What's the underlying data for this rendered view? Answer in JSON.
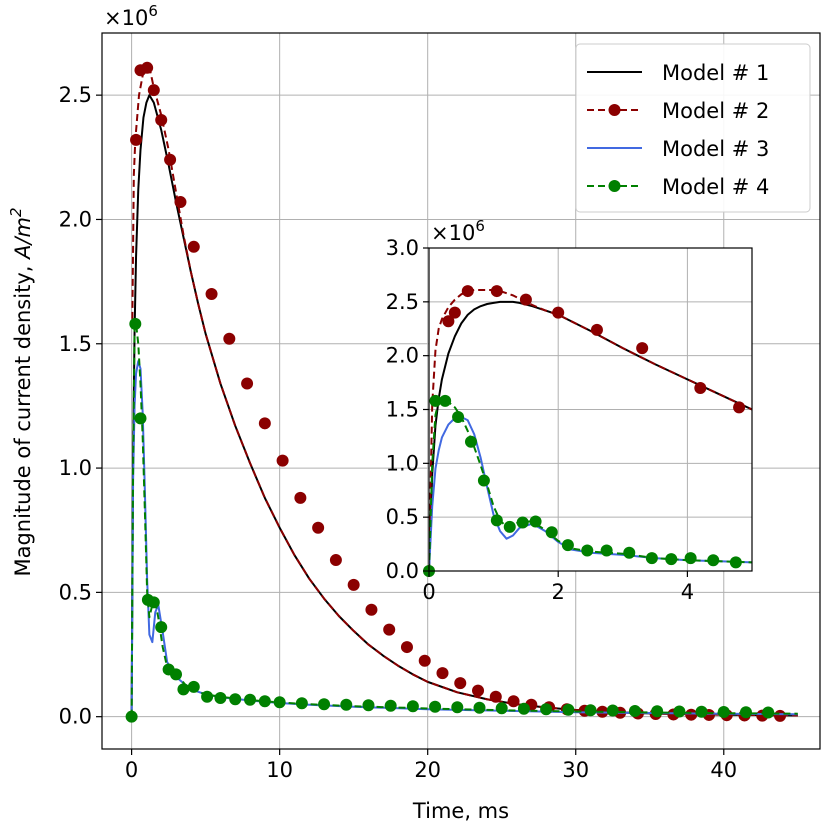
{
  "chart_data": [
    {
      "id": "main",
      "type": "line",
      "title": "",
      "xlabel": "Time, ms",
      "ylabel": "Magnitude of current density, ",
      "ylabel_math": "A/m",
      "ylabel_sup": "2",
      "y_multiplier": "×10",
      "y_multiplier_exp": "6",
      "xlim": [
        -2,
        46.5
      ],
      "ylim": [
        -0.13,
        2.75
      ],
      "xticks": [
        0,
        10,
        20,
        30,
        40
      ],
      "xtick_labels": [
        "0",
        "10",
        "20",
        "30",
        "40"
      ],
      "yticks": [
        0.0,
        0.5,
        1.0,
        1.5,
        2.0,
        2.5
      ],
      "ytick_labels": [
        "0.0",
        "0.5",
        "1.0",
        "1.5",
        "2.0",
        "2.5"
      ],
      "grid": true,
      "legend_position": "top-right",
      "series": [
        {
          "name": "Model # 1",
          "color": "#000000",
          "style": "solid",
          "marker": "none",
          "x": [
            0,
            0.1,
            0.2,
            0.3,
            0.45,
            0.6,
            0.8,
            1.0,
            1.2,
            1.5,
            2.0,
            2.5,
            3.0,
            3.5,
            4.0,
            4.5,
            5.0,
            6.0,
            7.0,
            8.0,
            9.0,
            10.0,
            11.0,
            12.0,
            13.0,
            14.0,
            15.0,
            16.0,
            17.0,
            18.0,
            19.0,
            20.0,
            22.0,
            24.0,
            26.0,
            28.0,
            30.0,
            32.0,
            34.0,
            36.0,
            38.0,
            40.0,
            42.0,
            45.0
          ],
          "y": [
            0,
            1.05,
            1.55,
            1.85,
            2.12,
            2.28,
            2.41,
            2.47,
            2.5,
            2.47,
            2.36,
            2.22,
            2.07,
            1.93,
            1.79,
            1.66,
            1.54,
            1.34,
            1.17,
            1.02,
            0.88,
            0.76,
            0.65,
            0.555,
            0.475,
            0.405,
            0.345,
            0.29,
            0.245,
            0.205,
            0.17,
            0.14,
            0.098,
            0.07,
            0.05,
            0.037,
            0.027,
            0.02,
            0.015,
            0.012,
            0.01,
            0.008,
            0.007,
            0.005
          ]
        },
        {
          "name": "Model # 2",
          "color": "#8b0000",
          "style": "dashed",
          "marker": "circle",
          "x": [
            0.05,
            0.15,
            0.25,
            0.5,
            0.75,
            1.0,
            1.25,
            1.5,
            2.0,
            2.5,
            3.0,
            3.5,
            4.0,
            4.5,
            5.0,
            6.0,
            7.0,
            8.0,
            9.0,
            10.0,
            11.0,
            12.0,
            13.0,
            14.0,
            15.0,
            16.0,
            17.0,
            18.0,
            19.0,
            20.0,
            22.0,
            24.0,
            26.0,
            28.0,
            30.0,
            32.0,
            34.0,
            36.0,
            38.0,
            40.0,
            42.0,
            45.0
          ],
          "y": [
            1.6,
            2.18,
            2.32,
            2.5,
            2.58,
            2.61,
            2.6,
            2.53,
            2.42,
            2.28,
            2.11,
            1.94,
            1.79,
            1.66,
            1.54,
            1.34,
            1.17,
            1.02,
            0.88,
            0.76,
            0.65,
            0.555,
            0.475,
            0.405,
            0.345,
            0.29,
            0.245,
            0.205,
            0.17,
            0.14,
            0.098,
            0.07,
            0.05,
            0.037,
            0.027,
            0.02,
            0.015,
            0.012,
            0.01,
            0.008,
            0.007,
            0.005
          ],
          "marker_x": [
            0.3,
            0.6,
            1.05,
            1.5,
            2.0,
            2.6,
            3.3,
            4.2,
            5.4,
            6.6,
            7.8,
            9.0,
            10.2,
            11.4,
            12.6,
            13.8,
            15.0,
            16.2,
            17.4,
            18.6,
            19.8,
            21.0,
            22.2,
            23.4,
            24.6,
            25.8,
            27.0,
            28.2,
            29.4,
            30.6,
            31.8,
            33.0,
            34.2,
            35.4,
            36.6,
            37.8,
            39.0,
            40.2,
            41.4,
            42.6,
            43.8
          ],
          "marker_y": [
            2.32,
            2.6,
            2.61,
            2.52,
            2.4,
            2.24,
            2.07,
            1.89,
            1.7,
            1.52,
            1.34,
            1.18,
            1.03,
            0.88,
            0.76,
            0.63,
            0.53,
            0.43,
            0.35,
            0.28,
            0.225,
            0.175,
            0.135,
            0.105,
            0.08,
            0.062,
            0.048,
            0.038,
            0.03,
            0.024,
            0.02,
            0.016,
            0.013,
            0.011,
            0.009,
            0.008,
            0.007,
            0.006,
            0.005,
            0.004,
            0.003
          ]
        },
        {
          "name": "Model # 3",
          "color": "#4169e1",
          "style": "solid",
          "marker": "none",
          "x": [
            0,
            0.1,
            0.2,
            0.3,
            0.45,
            0.6,
            0.75,
            0.9,
            1.05,
            1.2,
            1.4,
            1.6,
            1.8,
            2.1,
            2.4,
            2.8,
            3.2,
            3.6,
            4.0,
            4.5,
            5.0,
            6.0,
            8.0,
            10.0,
            12.0,
            15.0,
            20.0,
            25.0,
            30.0,
            35.0,
            40.0,
            45.0
          ],
          "y": [
            0,
            0.95,
            1.25,
            1.38,
            1.43,
            1.4,
            1.22,
            0.9,
            0.55,
            0.33,
            0.3,
            0.42,
            0.45,
            0.34,
            0.22,
            0.18,
            0.15,
            0.13,
            0.115,
            0.1,
            0.09,
            0.078,
            0.065,
            0.055,
            0.048,
            0.04,
            0.03,
            0.024,
            0.018,
            0.015,
            0.012,
            0.01
          ]
        },
        {
          "name": "Model # 4",
          "color": "#008000",
          "style": "dashed",
          "marker": "circle",
          "x": [
            0,
            0.1,
            0.2,
            0.3,
            0.45,
            0.6,
            0.75,
            0.9,
            1.05,
            1.2,
            1.4,
            1.6,
            1.8,
            2.1,
            2.4,
            2.8,
            3.2,
            3.6,
            4.0,
            4.5,
            5.0,
            6.0,
            8.0,
            10.0,
            12.0,
            15.0,
            20.0,
            25.0,
            30.0,
            35.0,
            40.0,
            45.0
          ],
          "y": [
            0,
            1.0,
            1.58,
            1.58,
            1.5,
            1.34,
            1.12,
            0.82,
            0.5,
            0.4,
            0.45,
            0.46,
            0.4,
            0.28,
            0.2,
            0.18,
            0.16,
            0.13,
            0.115,
            0.1,
            0.09,
            0.08,
            0.067,
            0.057,
            0.05,
            0.042,
            0.033,
            0.026,
            0.021,
            0.017,
            0.014,
            0.012
          ],
          "marker_x": [
            0,
            0.25,
            0.6,
            1.1,
            1.5,
            2.0,
            2.5,
            3.0,
            3.5,
            4.2,
            5.1,
            6.0,
            7.0,
            8.0,
            9.0,
            10.0,
            11.5,
            13.0,
            14.5,
            16.0,
            17.5,
            19.0,
            20.5,
            22.0,
            23.5,
            25.0,
            26.5,
            28.0,
            29.5,
            31.0,
            32.5,
            34.0,
            35.5,
            37.0,
            38.5,
            40.0,
            41.5,
            43.0
          ],
          "marker_y": [
            0,
            1.58,
            1.2,
            0.47,
            0.46,
            0.36,
            0.19,
            0.17,
            0.11,
            0.12,
            0.08,
            0.075,
            0.07,
            0.068,
            0.062,
            0.058,
            0.054,
            0.05,
            0.048,
            0.046,
            0.044,
            0.042,
            0.04,
            0.038,
            0.036,
            0.034,
            0.032,
            0.03,
            0.028,
            0.026,
            0.025,
            0.023,
            0.022,
            0.021,
            0.02,
            0.019,
            0.018,
            0.017
          ]
        }
      ]
    },
    {
      "id": "inset",
      "type": "line",
      "title": "",
      "xlabel": "",
      "ylabel": "",
      "y_multiplier": "×10",
      "y_multiplier_exp": "6",
      "xlim": [
        0,
        5
      ],
      "ylim": [
        0,
        3.0
      ],
      "xticks": [
        0,
        2,
        4
      ],
      "xtick_labels": [
        "0",
        "2",
        "4"
      ],
      "yticks": [
        0.0,
        0.5,
        1.0,
        1.5,
        2.0,
        2.5,
        3.0
      ],
      "ytick_labels": [
        "0.0",
        "0.5",
        "1.0",
        "1.5",
        "2.0",
        "2.5",
        "3.0"
      ],
      "grid": true,
      "series": [
        {
          "name": "Model # 1",
          "color": "#000000",
          "style": "solid",
          "marker": "none",
          "x": [
            0,
            0.05,
            0.1,
            0.15,
            0.2,
            0.3,
            0.4,
            0.5,
            0.6,
            0.7,
            0.8,
            0.9,
            1.0,
            1.1,
            1.2,
            1.3,
            1.4,
            1.6,
            1.8,
            2.0,
            2.5,
            3.0,
            3.5,
            4.0,
            4.5,
            5.0
          ],
          "y": [
            0,
            0.9,
            1.35,
            1.6,
            1.78,
            2.02,
            2.18,
            2.3,
            2.38,
            2.43,
            2.46,
            2.48,
            2.49,
            2.5,
            2.5,
            2.5,
            2.49,
            2.46,
            2.42,
            2.38,
            2.23,
            2.07,
            1.92,
            1.78,
            1.64,
            1.5
          ]
        },
        {
          "name": "Model # 2",
          "color": "#8b0000",
          "style": "dashed",
          "marker": "circle",
          "x": [
            0.0,
            0.05,
            0.1,
            0.15,
            0.2,
            0.3,
            0.4,
            0.5,
            0.6,
            0.7,
            0.8,
            0.9,
            1.0,
            1.1,
            1.2,
            1.3,
            1.4,
            1.6,
            1.8,
            2.0,
            2.5,
            3.0,
            3.5,
            4.0,
            4.5,
            5.0
          ],
          "y": [
            0.05,
            1.55,
            2.05,
            2.25,
            2.34,
            2.45,
            2.52,
            2.57,
            2.6,
            2.61,
            2.61,
            2.61,
            2.61,
            2.6,
            2.58,
            2.56,
            2.53,
            2.47,
            2.42,
            2.38,
            2.23,
            2.07,
            1.92,
            1.78,
            1.64,
            1.5
          ],
          "marker_x": [
            0.3,
            0.4,
            0.6,
            1.05,
            1.5,
            2.0,
            2.6,
            3.3,
            4.2,
            4.8
          ],
          "marker_y": [
            2.32,
            2.4,
            2.6,
            2.6,
            2.52,
            2.4,
            2.24,
            2.07,
            1.7,
            1.52
          ]
        },
        {
          "name": "Model # 3",
          "color": "#4169e1",
          "style": "solid",
          "marker": "none",
          "x": [
            0,
            0.05,
            0.1,
            0.15,
            0.2,
            0.3,
            0.4,
            0.5,
            0.6,
            0.7,
            0.8,
            0.9,
            1.0,
            1.1,
            1.2,
            1.3,
            1.4,
            1.6,
            1.8,
            2.0,
            2.2,
            2.5,
            3.0,
            3.5,
            4.0,
            4.5,
            5.0
          ],
          "y": [
            0,
            0.6,
            0.95,
            1.12,
            1.24,
            1.36,
            1.42,
            1.43,
            1.4,
            1.27,
            1.05,
            0.78,
            0.52,
            0.37,
            0.3,
            0.33,
            0.4,
            0.44,
            0.37,
            0.27,
            0.2,
            0.17,
            0.15,
            0.12,
            0.1,
            0.09,
            0.08
          ]
        },
        {
          "name": "Model # 4",
          "color": "#008000",
          "style": "dashed",
          "marker": "circle",
          "x": [
            0,
            0.05,
            0.1,
            0.15,
            0.2,
            0.3,
            0.4,
            0.5,
            0.6,
            0.7,
            0.8,
            0.9,
            1.0,
            1.1,
            1.2,
            1.3,
            1.4,
            1.6,
            1.8,
            2.0,
            2.2,
            2.5,
            3.0,
            3.5,
            4.0,
            4.5,
            5.0
          ],
          "y": [
            0,
            1.0,
            1.45,
            1.57,
            1.58,
            1.57,
            1.52,
            1.43,
            1.3,
            1.15,
            0.98,
            0.8,
            0.6,
            0.47,
            0.41,
            0.42,
            0.46,
            0.46,
            0.38,
            0.28,
            0.21,
            0.18,
            0.16,
            0.12,
            0.1,
            0.09,
            0.08
          ],
          "marker_x": [
            0,
            0.1,
            0.25,
            0.45,
            0.65,
            0.85,
            1.05,
            1.25,
            1.45,
            1.65,
            1.9,
            2.15,
            2.45,
            2.75,
            3.1,
            3.45,
            3.75,
            4.05,
            4.4,
            4.75
          ],
          "marker_y": [
            0,
            1.58,
            1.58,
            1.43,
            1.2,
            0.84,
            0.47,
            0.41,
            0.45,
            0.46,
            0.36,
            0.24,
            0.19,
            0.19,
            0.17,
            0.12,
            0.11,
            0.12,
            0.1,
            0.08
          ]
        }
      ]
    }
  ],
  "legend": {
    "entries": [
      {
        "label": "Model # 1",
        "color": "#000000",
        "dashed": false,
        "marker": false
      },
      {
        "label": "Model # 2",
        "color": "#8b0000",
        "dashed": true,
        "marker": true
      },
      {
        "label": "Model # 3",
        "color": "#4169e1",
        "dashed": false,
        "marker": false
      },
      {
        "label": "Model # 4",
        "color": "#008000",
        "dashed": true,
        "marker": true
      }
    ]
  }
}
